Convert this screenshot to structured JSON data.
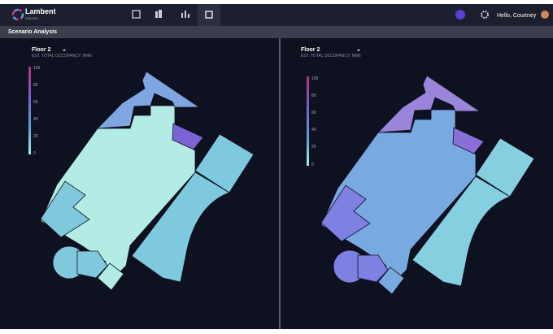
{
  "header": {
    "logo": "Lambent",
    "logo_sub": "SPACES",
    "greeting": "Hello, Courtney"
  },
  "toolbar": {
    "title": "Scenario Analysis"
  },
  "panels": [
    {
      "floor": "Floor 2",
      "subtitle": "EST. TOTAL OCCUPANCY: NNN",
      "scale": [
        100,
        80,
        60,
        40,
        20,
        0
      ]
    },
    {
      "floor": "Floor 2",
      "subtitle": "EST. TOTAL OCCUPANCY: NNN",
      "scale": [
        100,
        80,
        60,
        40,
        20,
        0
      ]
    }
  ]
}
